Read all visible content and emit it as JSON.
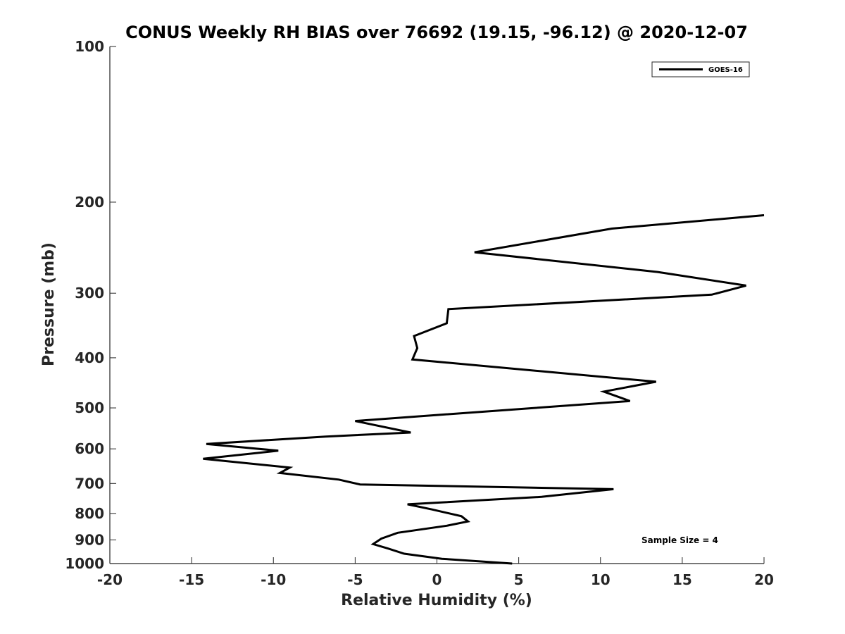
{
  "chart_data": {
    "type": "line",
    "title": "CONUS Weekly RH BIAS over 76692 (19.15, -96.12) @ 2020-12-07",
    "xlabel": "Relative Humidity (%)",
    "ylabel": "Pressure (mb)",
    "xlim": [
      -20,
      20
    ],
    "ylim": [
      100,
      1000
    ],
    "yscale": "log",
    "yreversed": true,
    "xticks": [
      -20,
      -15,
      -10,
      -5,
      0,
      5,
      10,
      15,
      20
    ],
    "xtick_labels": [
      "-20",
      "-15",
      "-10",
      "-5",
      "0",
      "5",
      "10",
      "15",
      "20"
    ],
    "yticks": [
      100,
      200,
      300,
      400,
      500,
      600,
      700,
      800,
      900,
      1000
    ],
    "ytick_labels": [
      "100",
      "200",
      "300",
      "400",
      "500",
      "600",
      "700",
      "800",
      "900",
      "1000"
    ],
    "grid": false,
    "legend_position": "top-right",
    "color": "#000000",
    "series": [
      {
        "name": "GOES-16",
        "x": [
          20.0,
          10.7,
          2.3,
          13.5,
          18.9,
          16.8,
          0.7,
          0.6,
          -1.4,
          -1.2,
          -1.5,
          13.4,
          10.2,
          11.8,
          -5.0,
          -1.6,
          -6.8,
          -14.1,
          -9.7,
          -14.3,
          -9.0,
          -9.6,
          -6.0,
          -4.7,
          10.8,
          6.4,
          -1.8,
          -0.3,
          1.5,
          1.9,
          0.6,
          -2.4,
          -3.4,
          -3.9,
          -3.0,
          -2.0,
          0.3,
          4.6
        ],
        "y": [
          212,
          225,
          250,
          273,
          290,
          302,
          322,
          343,
          363,
          383,
          403,
          445,
          465,
          485,
          530,
          558,
          568,
          587,
          605,
          627,
          652,
          668,
          688,
          703,
          718,
          743,
          768,
          786,
          810,
          829,
          845,
          872,
          895,
          917,
          935,
          957,
          979,
          1005
        ]
      }
    ],
    "annotations": [
      "Sample Size = 4"
    ]
  }
}
